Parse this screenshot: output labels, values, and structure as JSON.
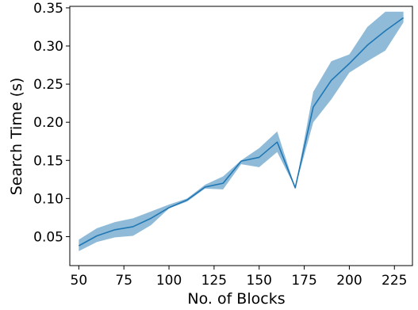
{
  "chart_data": {
    "type": "line",
    "xlabel": "No. of Blocks",
    "ylabel": "Search Time (s)",
    "xlim": [
      45,
      235
    ],
    "ylim": [
      0.012,
      0.352
    ],
    "xticks": [
      50,
      75,
      100,
      125,
      150,
      175,
      200,
      225
    ],
    "yticks": [
      0.05,
      0.1,
      0.15,
      0.2,
      0.25,
      0.3,
      0.35
    ],
    "xtick_labels": [
      "50",
      "75",
      "100",
      "125",
      "150",
      "175",
      "200",
      "225"
    ],
    "ytick_labels": [
      "0.05",
      "0.10",
      "0.15",
      "0.20",
      "0.25",
      "0.30",
      "0.35"
    ],
    "grid": false,
    "series": [
      {
        "x": [
          50,
          60,
          70,
          80,
          90,
          100,
          110,
          120,
          130,
          140,
          150,
          160,
          170,
          180,
          190,
          200,
          210,
          220,
          230
        ],
        "values": [
          0.038,
          0.051,
          0.059,
          0.063,
          0.074,
          0.088,
          0.098,
          0.115,
          0.12,
          0.149,
          0.154,
          0.174,
          0.114,
          0.22,
          0.255,
          0.277,
          0.301,
          0.32,
          0.337
        ],
        "lower": [
          0.031,
          0.043,
          0.049,
          0.051,
          0.065,
          0.087,
          0.096,
          0.113,
          0.112,
          0.145,
          0.141,
          0.161,
          0.114,
          0.2,
          0.23,
          0.265,
          0.28,
          0.294,
          0.331
        ],
        "upper": [
          0.046,
          0.061,
          0.069,
          0.074,
          0.083,
          0.092,
          0.1,
          0.118,
          0.129,
          0.15,
          0.166,
          0.188,
          0.114,
          0.24,
          0.28,
          0.289,
          0.325,
          0.345,
          0.345
        ]
      }
    ],
    "colors": {
      "line": "#1f77b4",
      "band": "#1f77b4",
      "axes": "#000000"
    }
  }
}
